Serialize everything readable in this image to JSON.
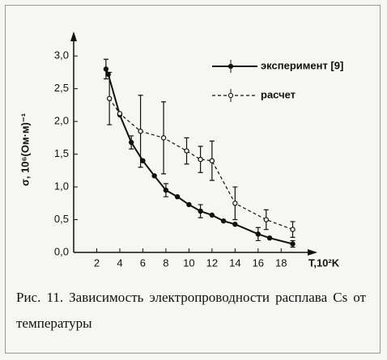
{
  "chart_data": {
    "type": "line",
    "xlabel": "T,10²K",
    "ylabel": "σ, 10⁶(Ом·м)⁻¹",
    "xlim": [
      0,
      21
    ],
    "xticks": [
      2,
      4,
      6,
      8,
      10,
      12,
      14,
      16,
      18
    ],
    "ylim": [
      0,
      3.2
    ],
    "yticks": [
      {
        "value": 0,
        "label": "0,0"
      },
      {
        "value": 0.5,
        "label": "0,5"
      },
      {
        "value": 1,
        "label": "1,0"
      },
      {
        "value": 1.5,
        "label": "1,5"
      },
      {
        "value": 2,
        "label": "2,0"
      },
      {
        "value": 2.5,
        "label": "2,5"
      },
      {
        "value": 3,
        "label": "3,0"
      }
    ],
    "series": [
      {
        "name": "эксперимент [9]",
        "color": "#111111",
        "dash": false,
        "filled": true,
        "x": [
          2.8,
          3,
          4,
          5,
          6,
          7,
          8,
          9,
          10,
          11,
          12,
          13,
          14,
          16,
          17,
          19
        ],
        "values": [
          2.8,
          2.72,
          2.1,
          1.68,
          1.4,
          1.17,
          0.95,
          0.85,
          0.73,
          0.63,
          0.57,
          0.48,
          0.43,
          0.28,
          0.22,
          0.13
        ],
        "errors": [
          0.15,
          null,
          null,
          0.1,
          null,
          null,
          0.1,
          null,
          null,
          0.1,
          null,
          null,
          null,
          0.1,
          null,
          0.05
        ]
      },
      {
        "name": "расчет",
        "color": "#111111",
        "dash": true,
        "filled": false,
        "x": [
          3.1,
          4,
          5.8,
          7.8,
          9.8,
          11,
          12,
          14,
          16.7,
          19
        ],
        "values": [
          2.35,
          2.12,
          1.85,
          1.75,
          1.55,
          1.42,
          1.4,
          0.75,
          0.5,
          0.35
        ],
        "errors": [
          0.4,
          null,
          0.55,
          0.55,
          0.2,
          0.2,
          0.3,
          0.25,
          0.15,
          0.12
        ]
      }
    ]
  },
  "caption": "Рис. 11. Зависимость электропроводности расплава Cs от температуры"
}
